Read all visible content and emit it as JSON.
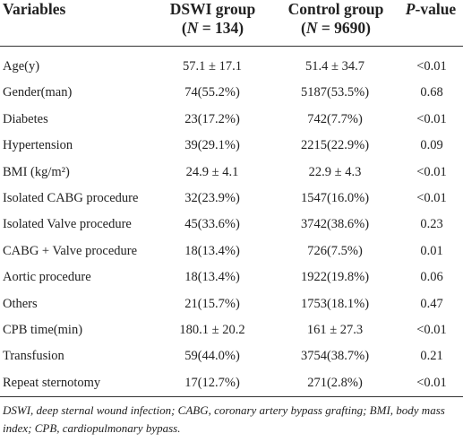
{
  "header": {
    "variables": "Variables",
    "dswi": {
      "name": "DSWI group",
      "n": [
        "(",
        "N",
        " = 134)"
      ]
    },
    "control": {
      "name": "Control group",
      "n": [
        "(",
        "N",
        " = 9690)"
      ]
    },
    "p": [
      "P",
      "-value"
    ]
  },
  "table": {
    "rows": [
      [
        "Age(y)",
        "57.1 ± 17.1",
        "51.4 ± 34.7",
        "<0.01"
      ],
      [
        "Gender(man)",
        "74(55.2%)",
        "5187(53.5%)",
        "0.68"
      ],
      [
        "Diabetes",
        "23(17.2%)",
        "742(7.7%)",
        "<0.01"
      ],
      [
        "Hypertension",
        "39(29.1%)",
        "2215(22.9%)",
        "0.09"
      ],
      [
        "BMI (kg/m²)",
        "24.9 ± 4.1",
        "22.9 ± 4.3",
        "<0.01"
      ],
      [
        "Isolated CABG procedure",
        "32(23.9%)",
        "1547(16.0%)",
        "<0.01"
      ],
      [
        "Isolated Valve procedure",
        "45(33.6%)",
        "3742(38.6%)",
        "0.23"
      ],
      [
        "CABG + Valve procedure",
        "18(13.4%)",
        "726(7.5%)",
        "0.01"
      ],
      [
        "Aortic procedure",
        "18(13.4%)",
        "1922(19.8%)",
        "0.06"
      ],
      [
        "Others",
        "21(15.7%)",
        "1753(18.1%)",
        "0.47"
      ],
      [
        "CPB time(min)",
        "180.1 ± 20.2",
        "161 ± 27.3",
        "<0.01"
      ],
      [
        "Transfusion",
        "59(44.0%)",
        "3754(38.7%)",
        "0.21"
      ],
      [
        "Repeat sternotomy",
        "17(12.7%)",
        "271(2.8%)",
        "<0.01"
      ]
    ]
  },
  "footnote": "DSWI, deep sternal wound infection; CABG, coronary artery bypass grafting; BMI, body mass index; CPB, cardiopulmonary bypass."
}
